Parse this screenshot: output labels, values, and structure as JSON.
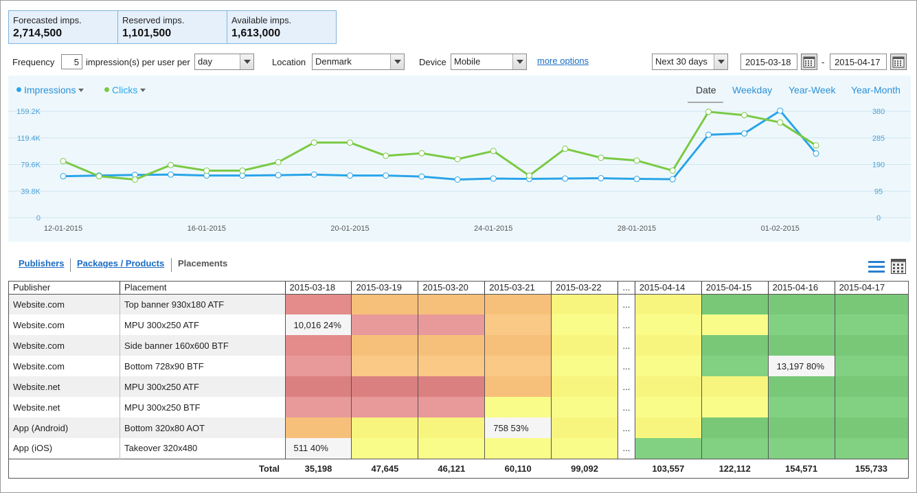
{
  "summary": [
    {
      "label": "Forecasted imps.",
      "value": "2,714,500"
    },
    {
      "label": "Reserved imps.",
      "value": "1,101,500"
    },
    {
      "label": "Available imps.",
      "value": "1,613,000"
    }
  ],
  "filters": {
    "frequency_label": "Frequency",
    "frequency_value": "5",
    "per_user_label": "impression(s) per user per",
    "period": "day",
    "location_label": "Location",
    "location": "Denmark",
    "device_label": "Device",
    "device": "Mobile",
    "more_options": "more options",
    "range": "Next 30 days",
    "date_from": "2015-03-18",
    "date_sep": "-",
    "date_to": "2015-04-17"
  },
  "chart_tabs": {
    "legend": [
      {
        "label": "Impressions",
        "color": "#2aa4e8"
      },
      {
        "label": "Clicks",
        "color": "#7ac943"
      }
    ],
    "views": [
      "Date",
      "Weekday",
      "Year-Week",
      "Year-Month"
    ],
    "active_view": "Date"
  },
  "chart_data": {
    "type": "line",
    "x": [
      "12-01-2015",
      "13-01-2015",
      "14-01-2015",
      "15-01-2015",
      "16-01-2015",
      "17-01-2015",
      "18-01-2015",
      "19-01-2015",
      "20-01-2015",
      "21-01-2015",
      "22-01-2015",
      "23-01-2015",
      "24-01-2015",
      "25-01-2015",
      "26-01-2015",
      "27-01-2015",
      "28-01-2015",
      "29-01-2015",
      "30-01-2015",
      "31-01-2015",
      "01-02-2015",
      "02-02-2015"
    ],
    "x_tick_labels": [
      "12-01-2015",
      "16-01-2015",
      "20-01-2015",
      "24-01-2015",
      "28-01-2015",
      "01-02-2015"
    ],
    "y_left_ticks": [
      "0",
      "39.8K",
      "79.6K",
      "119.4K",
      "159.2K"
    ],
    "y_left_max": 159200,
    "y_right_ticks": [
      "0",
      "95",
      "190",
      "285",
      "380"
    ],
    "y_right_max": 380,
    "series": [
      {
        "name": "Impressions",
        "axis": "left",
        "color": "#2aa4e8",
        "values": [
          62000,
          63000,
          64000,
          64500,
          63000,
          63000,
          63500,
          64500,
          63000,
          63000,
          61500,
          57000,
          58500,
          58000,
          58500,
          59000,
          58000,
          57500,
          124000,
          126000,
          160000,
          96000
        ]
      },
      {
        "name": "Clicks",
        "axis": "right",
        "color": "#7ac943",
        "values": [
          202,
          148,
          136,
          188,
          168,
          168,
          198,
          268,
          268,
          221,
          230,
          209,
          238,
          150,
          246,
          214,
          204,
          168,
          378,
          366,
          340,
          258
        ]
      }
    ],
    "grid": true
  },
  "subtabs": {
    "publishers": "Publishers",
    "packages": "Packages / Products",
    "placements": "Placements"
  },
  "table": {
    "col_publisher": "Publisher",
    "col_placement": "Placement",
    "dates": [
      "2015-03-18",
      "2015-03-19",
      "2015-03-20",
      "2015-03-21",
      "2015-03-22",
      "...",
      "2015-04-14",
      "2015-04-15",
      "2015-04-16",
      "2015-04-17"
    ],
    "rows": [
      {
        "publisher": "Website.com",
        "placement": "Top banner 930x180 ATF",
        "colors": [
          "#e48b8b",
          "#f7c07a",
          "#f7c07a",
          "#f7c07a",
          "#f8f57e",
          "",
          "#f8f57e",
          "#78c878",
          "#78c878",
          "#78c878"
        ],
        "texts": [
          "",
          "",
          "",
          "",
          "",
          "...",
          "",
          "",
          "",
          ""
        ]
      },
      {
        "publisher": "Website.com",
        "placement": "MPU 300x250 ATF",
        "colors": [
          "#f5f5f5",
          "#e89a9a",
          "#e89a9a",
          "#fbc986",
          "#fafc8a",
          "",
          "#fafc8a",
          "#fafc8a",
          "#82d182",
          "#82d182"
        ],
        "texts": [
          "10,016  24%",
          "",
          "",
          "",
          "",
          "...",
          "",
          "",
          "",
          ""
        ]
      },
      {
        "publisher": "Website.com",
        "placement": "Side banner 160x600 BTF",
        "colors": [
          "#e48b8b",
          "#f7c07a",
          "#f7c07a",
          "#f7c07a",
          "#f8f57e",
          "",
          "#f8f57e",
          "#78c878",
          "#78c878",
          "#78c878"
        ],
        "texts": [
          "",
          "",
          "",
          "",
          "",
          "...",
          "",
          "",
          "",
          ""
        ]
      },
      {
        "publisher": "Website.com",
        "placement": "Bottom 728x90 BTF",
        "colors": [
          "#e89a9a",
          "#fbc986",
          "#fbc986",
          "#fbc986",
          "#fafc8a",
          "",
          "#fafc8a",
          "#82d182",
          "#f5f5f5",
          "#82d182"
        ],
        "texts": [
          "",
          "",
          "",
          "",
          "",
          "...",
          "",
          "",
          "13,197  80%",
          ""
        ]
      },
      {
        "publisher": "Website.net",
        "placement": "MPU 300x250 ATF",
        "colors": [
          "#db8080",
          "#db8080",
          "#db8080",
          "#f7c07a",
          "#f8f57e",
          "",
          "#f8f57e",
          "#f8f57e",
          "#78c878",
          "#78c878"
        ],
        "texts": [
          "",
          "",
          "",
          "",
          "",
          "...",
          "",
          "",
          "",
          ""
        ]
      },
      {
        "publisher": "Website.net",
        "placement": "MPU 300x250 BTF",
        "colors": [
          "#e89a9a",
          "#e89a9a",
          "#e89a9a",
          "#fafc8a",
          "#fafc8a",
          "",
          "#fafc8a",
          "#fafc8a",
          "#82d182",
          "#82d182"
        ],
        "texts": [
          "",
          "",
          "",
          "",
          "",
          "...",
          "",
          "",
          "",
          ""
        ]
      },
      {
        "publisher": "App (Android)",
        "placement": "Bottom 320x80 AOT",
        "colors": [
          "#f7c07a",
          "#f8f57e",
          "#f8f57e",
          "#f5f5f5",
          "#f8f57e",
          "",
          "#f8f57e",
          "#78c878",
          "#78c878",
          "#78c878"
        ],
        "texts": [
          "",
          "",
          "",
          "758   53%",
          "",
          "...",
          "",
          "",
          "",
          ""
        ]
      },
      {
        "publisher": "App (iOS)",
        "placement": "Takeover 320x480",
        "colors": [
          "#f5f5f5",
          "#fafc8a",
          "#fafc8a",
          "#fafc8a",
          "#fafc8a",
          "",
          "#82d182",
          "#82d182",
          "#82d182",
          "#82d182"
        ],
        "texts": [
          "511   40%",
          "",
          "",
          "",
          "",
          "...",
          "",
          "",
          "",
          ""
        ]
      }
    ],
    "total_label": "Total",
    "totals": [
      "35,198",
      "47,645",
      "46,121",
      "60,110",
      "99,092",
      "",
      "103,557",
      "122,112",
      "154,571",
      "155,733"
    ]
  }
}
